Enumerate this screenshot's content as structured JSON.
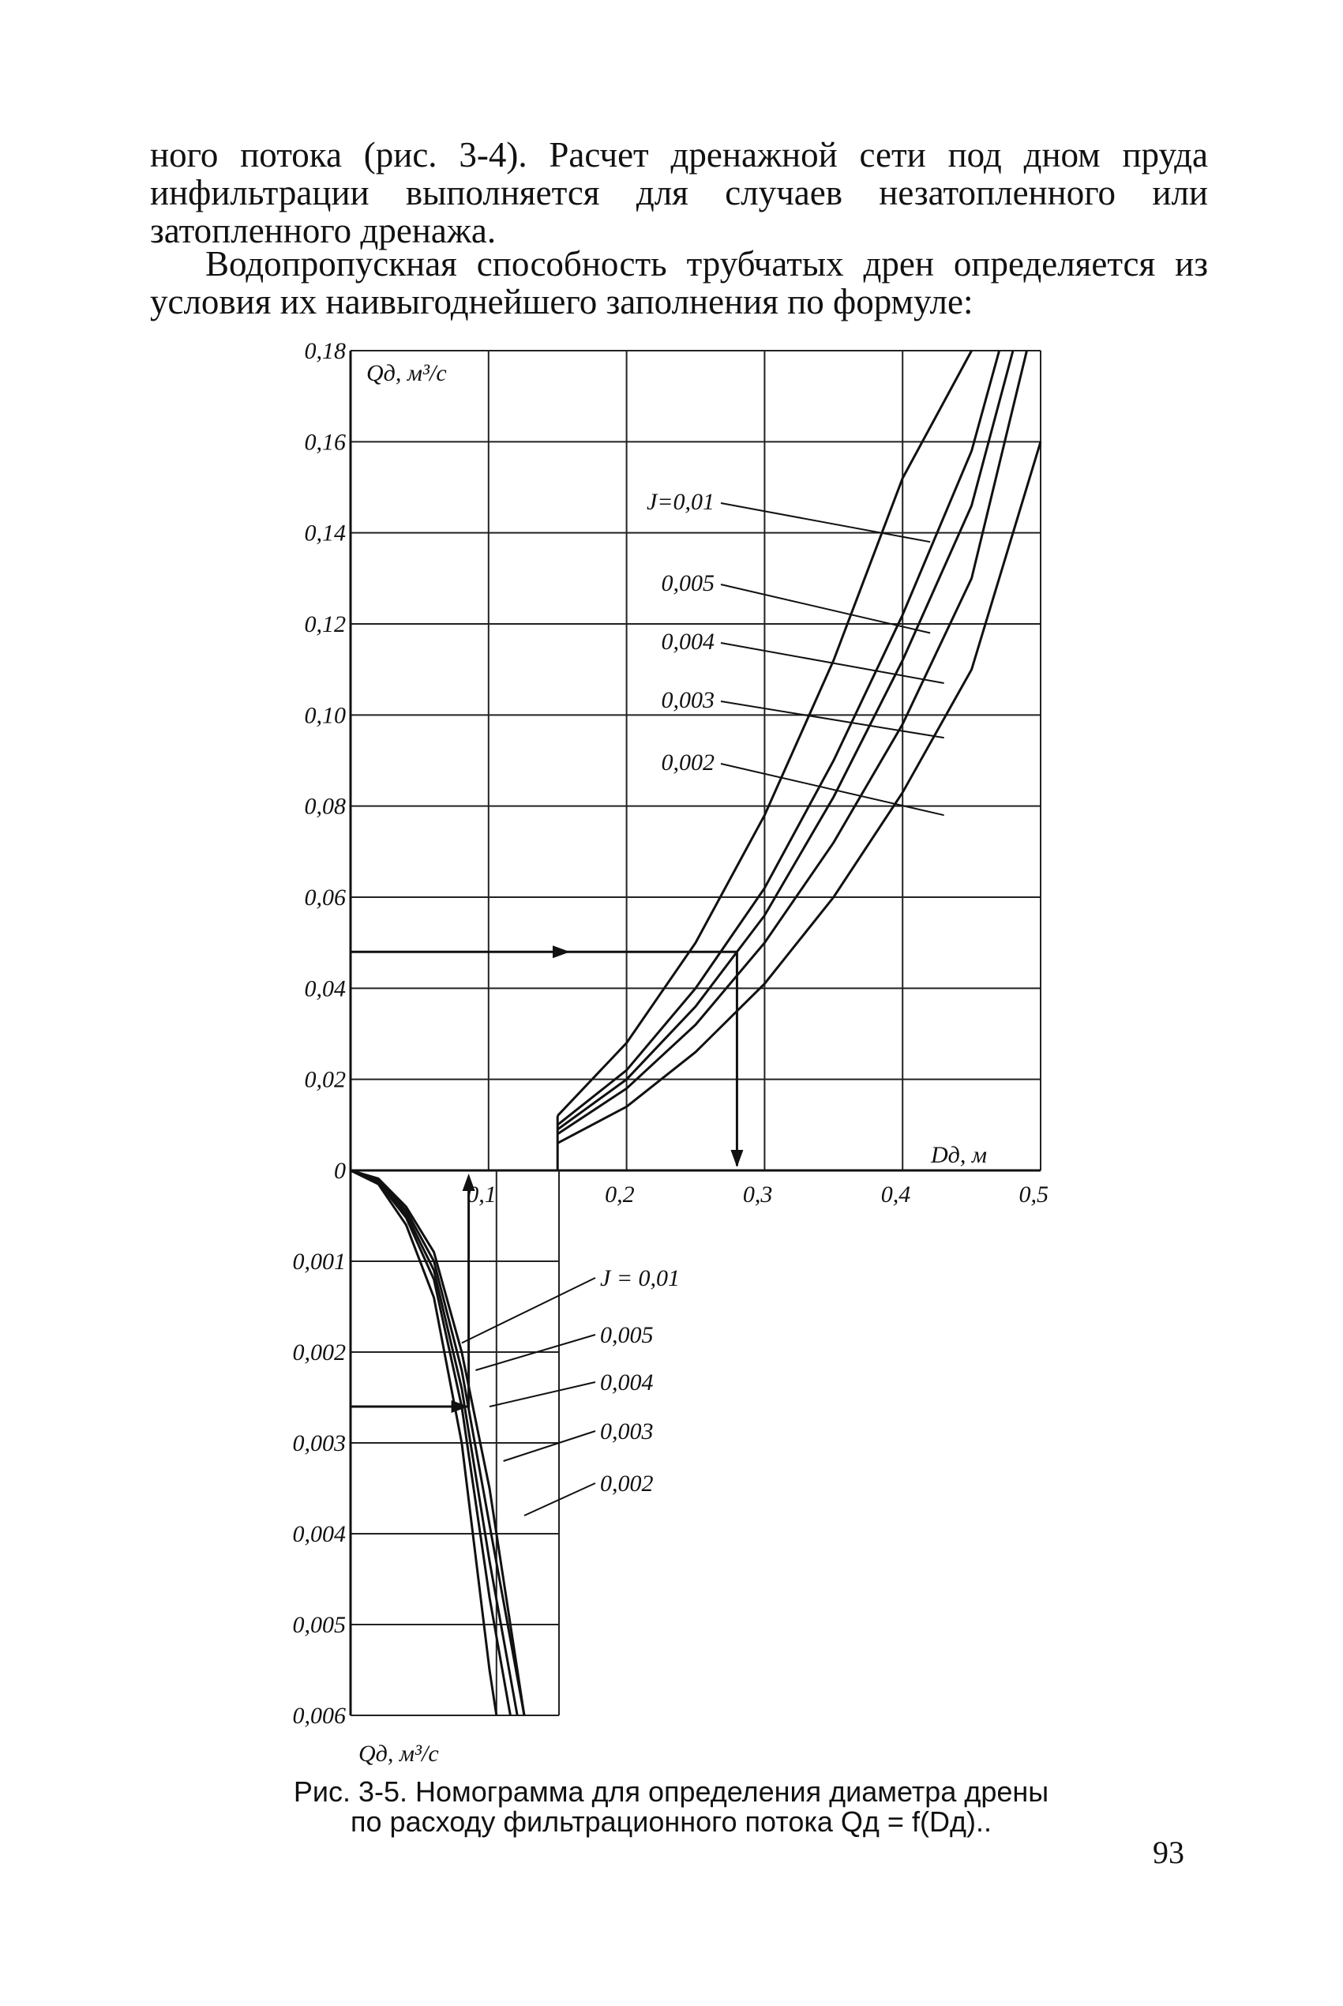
{
  "text": {
    "paragraph_1": "ного потока (рис. 3-4). Расчет дренажной сети под дном пруда инфильтрации выполняется для случаев незатопленного или затопленного дренажа.",
    "paragraph_2": "Водопропускная способность трубчатых дрен определяется из условия их наивыгоднейшего заполнения по формуле:"
  },
  "figure": {
    "caption_line1": "Рис. 3-5. Номограмма для определения диаметра дрены",
    "caption_line2": "по расходу фильтрационного потока Qд = f(Dд).."
  },
  "page_number": "93",
  "chart_data": [
    {
      "type": "line",
      "ylabel": "Qд, м³/с",
      "xlabel": "Dд, м",
      "x_tick_labels": [
        "0,1",
        "0,2",
        "0,3",
        "0,4",
        "0,5"
      ],
      "y_tick_labels": [
        "0",
        "0,02",
        "0,04",
        "0,06",
        "0,08",
        "0,10",
        "0,12",
        "0,14",
        "0,16",
        "0,18"
      ],
      "xlim": [
        0,
        0.5
      ],
      "ylim": [
        0,
        0.18
      ],
      "grid": true,
      "series": [
        {
          "name": "J=0,01",
          "x": [
            0.15,
            0.2,
            0.25,
            0.3,
            0.35,
            0.4,
            0.45
          ],
          "y": [
            0.012,
            0.028,
            0.05,
            0.078,
            0.112,
            0.152,
            0.18
          ]
        },
        {
          "name": "0,005",
          "x": [
            0.15,
            0.2,
            0.25,
            0.3,
            0.35,
            0.4,
            0.45,
            0.47
          ],
          "y": [
            0.01,
            0.022,
            0.04,
            0.062,
            0.09,
            0.122,
            0.158,
            0.18
          ]
        },
        {
          "name": "0,004",
          "x": [
            0.15,
            0.2,
            0.25,
            0.3,
            0.35,
            0.4,
            0.45,
            0.48
          ],
          "y": [
            0.009,
            0.02,
            0.036,
            0.056,
            0.082,
            0.112,
            0.146,
            0.18
          ]
        },
        {
          "name": "0,003",
          "x": [
            0.15,
            0.2,
            0.25,
            0.3,
            0.35,
            0.4,
            0.45,
            0.49
          ],
          "y": [
            0.008,
            0.018,
            0.032,
            0.05,
            0.072,
            0.098,
            0.13,
            0.18
          ]
        },
        {
          "name": "0,002",
          "x": [
            0.15,
            0.2,
            0.25,
            0.3,
            0.35,
            0.4,
            0.45,
            0.5
          ],
          "y": [
            0.006,
            0.014,
            0.026,
            0.041,
            0.06,
            0.083,
            0.11,
            0.16
          ]
        }
      ],
      "example_path": {
        "y_start": 0.048,
        "x_read": 0.28
      }
    },
    {
      "type": "line",
      "ylabel": "",
      "xlabel": "Qд, м³/с",
      "y_tick_labels": [
        "0,001",
        "0,002",
        "0,003",
        "0,004",
        "0,005",
        "0,006"
      ],
      "xlim": [
        0,
        0.15
      ],
      "ylim": [
        0,
        0.006
      ],
      "grid": true,
      "series": [
        {
          "name": "J = 0,01",
          "x": [
            0.0,
            0.02,
            0.04,
            0.06,
            0.08,
            0.1,
            0.105
          ],
          "y": [
            0.0,
            0.00015,
            0.0006,
            0.0014,
            0.003,
            0.0055,
            0.006
          ]
        },
        {
          "name": "0,005",
          "x": [
            0.0,
            0.02,
            0.04,
            0.06,
            0.08,
            0.1,
            0.115
          ],
          "y": [
            0.0,
            0.00013,
            0.00052,
            0.0012,
            0.0026,
            0.0047,
            0.006
          ]
        },
        {
          "name": "0,004",
          "x": [
            0.0,
            0.02,
            0.04,
            0.06,
            0.08,
            0.1,
            0.12
          ],
          "y": [
            0.0,
            0.00012,
            0.00048,
            0.0011,
            0.0024,
            0.0043,
            0.006
          ]
        },
        {
          "name": "0,003",
          "x": [
            0.0,
            0.02,
            0.04,
            0.06,
            0.08,
            0.1,
            0.125
          ],
          "y": [
            0.0,
            0.0001,
            0.00044,
            0.001,
            0.0022,
            0.0039,
            0.006
          ]
        },
        {
          "name": "0,002",
          "x": [
            0.0,
            0.02,
            0.04,
            0.06,
            0.08,
            0.1,
            0.125
          ],
          "y": [
            0.0,
            9e-05,
            0.0004,
            0.0009,
            0.002,
            0.0035,
            0.006
          ]
        }
      ],
      "example_path": {
        "y_start": 0.0026,
        "x_read": 0.085
      }
    }
  ]
}
